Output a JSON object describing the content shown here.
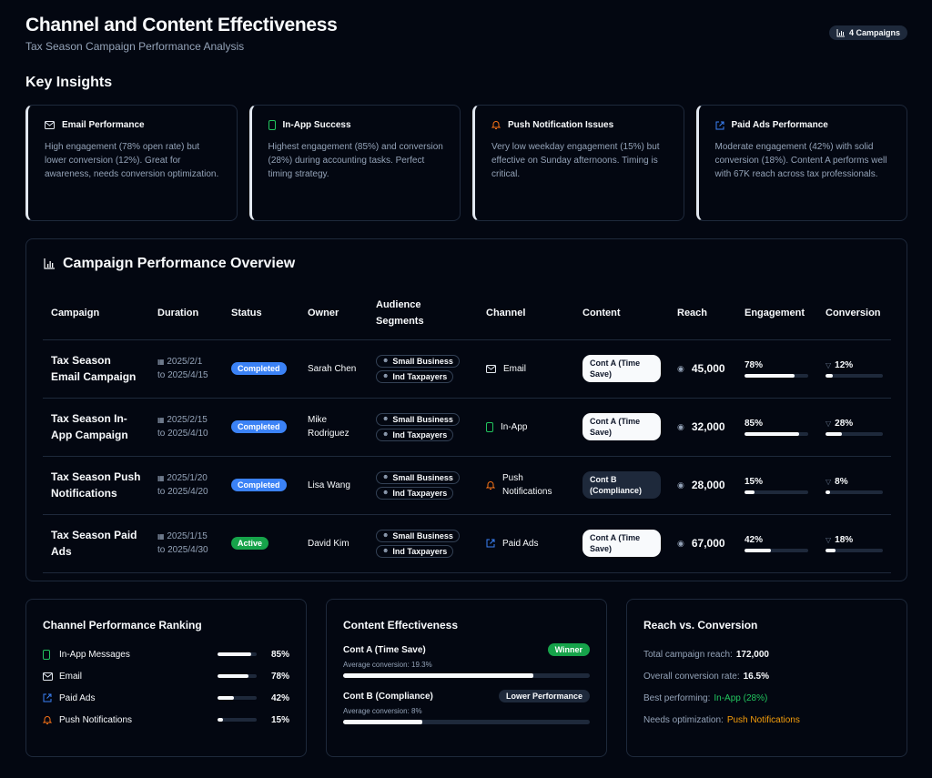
{
  "header": {
    "title": "Channel and Content Effectiveness",
    "subtitle": "Tax Season Campaign Performance Analysis",
    "campaign_badge": "4 Campaigns"
  },
  "insights_title": "Key Insights",
  "insights": [
    {
      "title": "Email Performance",
      "icon": "mail-icon",
      "text": "High engagement (78% open rate) but lower conversion (12%). Great for awareness, needs conversion optimization."
    },
    {
      "title": "In-App Success",
      "icon": "phone-icon",
      "text": "Highest engagement (85%) and conversion (28%) during accounting tasks. Perfect timing strategy."
    },
    {
      "title": "Push Notification Issues",
      "icon": "bell-icon",
      "text": "Very low weekday engagement (15%) but effective on Sunday afternoons. Timing is critical."
    },
    {
      "title": "Paid Ads Performance",
      "icon": "external-link-icon",
      "text": "Moderate engagement (42%) with solid conversion (18%). Content A performs well with 67K reach across tax professionals."
    }
  ],
  "overview": {
    "title": "Campaign Performance Overview",
    "columns": [
      "Campaign",
      "Duration",
      "Status",
      "Owner",
      "Audience Segments",
      "Channel",
      "Content",
      "Reach",
      "Engagement",
      "Conversion"
    ],
    "rows": [
      {
        "campaign": "Tax Season Email Campaign",
        "start": "2025/2/1",
        "end": "to 2025/4/15",
        "status": "Completed",
        "owner": "Sarah Chen",
        "segments": [
          "Small Business",
          "Ind Taxpayers"
        ],
        "channel": "Email",
        "content": "Cont A (Time Save)",
        "content_type": "a",
        "reach": "45,000",
        "engagement": "78%",
        "engagement_value": 78,
        "conversion": "12%",
        "conversion_value": 12
      },
      {
        "campaign": "Tax Season In-App Campaign",
        "start": "2025/2/15",
        "end": "to 2025/4/10",
        "status": "Completed",
        "owner": "Mike Rodriguez",
        "segments": [
          "Small Business",
          "Ind Taxpayers"
        ],
        "channel": "In-App",
        "content": "Cont A (Time Save)",
        "content_type": "a",
        "reach": "32,000",
        "engagement": "85%",
        "engagement_value": 85,
        "conversion": "28%",
        "conversion_value": 28
      },
      {
        "campaign": "Tax Season Push Notifications",
        "start": "2025/1/20",
        "end": "to 2025/4/20",
        "status": "Completed",
        "owner": "Lisa Wang",
        "segments": [
          "Small Business",
          "Ind Taxpayers"
        ],
        "channel": "Push Notifications",
        "content": "Cont B (Compliance)",
        "content_type": "b",
        "reach": "28,000",
        "engagement": "15%",
        "engagement_value": 15,
        "conversion": "8%",
        "conversion_value": 8
      },
      {
        "campaign": "Tax Season Paid Ads",
        "start": "2025/1/15",
        "end": "to 2025/4/30",
        "status": "Active",
        "owner": "David Kim",
        "segments": [
          "Small Business",
          "Ind Taxpayers"
        ],
        "channel": "Paid Ads",
        "content": "Cont A (Time Save)",
        "content_type": "a",
        "reach": "67,000",
        "engagement": "42%",
        "engagement_value": 42,
        "conversion": "18%",
        "conversion_value": 18
      }
    ]
  },
  "ranking": {
    "title": "Channel Performance Ranking",
    "items": [
      {
        "label": "In-App Messages",
        "value": "85%",
        "value_num": 85,
        "icon": "phone-icon"
      },
      {
        "label": "Email",
        "value": "78%",
        "value_num": 78,
        "icon": "mail-icon"
      },
      {
        "label": "Paid Ads",
        "value": "42%",
        "value_num": 42,
        "icon": "external-link-icon"
      },
      {
        "label": "Push Notifications",
        "value": "15%",
        "value_num": 15,
        "icon": "bell-icon"
      }
    ]
  },
  "content_effectiveness": {
    "title": "Content Effectiveness",
    "items": [
      {
        "label": "Cont A (Time Save)",
        "badge": "Winner",
        "sub": "Average conversion: 19.3%",
        "fill": 0.77
      },
      {
        "label": "Cont B (Compliance)",
        "badge": "Lower Performance",
        "sub": "Average conversion: 8%",
        "fill": 0.32
      }
    ]
  },
  "reach_conversion": {
    "title": "Reach vs. Conversion",
    "total_label": "Total campaign reach:",
    "total_value": "172,000",
    "rate_label": "Overall conversion rate:",
    "rate_value": "16.5%",
    "best_label": "Best performing:",
    "best_value": "In-App (28%)",
    "needs_label": "Needs optimization:",
    "needs_value": "Push Notifications"
  },
  "colors": {
    "email": "#e2e8f0",
    "inapp": "#22c55e",
    "push": "#f97316",
    "paid": "#3b82f6"
  }
}
